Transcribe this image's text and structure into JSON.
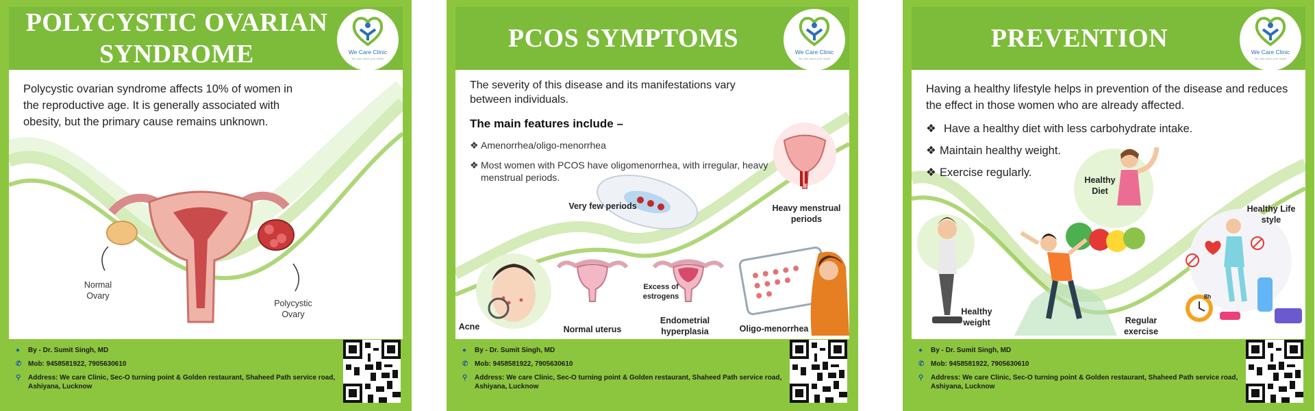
{
  "brand": {
    "name": "We Care Clinic",
    "tagline": "We care about your health",
    "green": "#8cc63f",
    "title_green": "#7dbb3a"
  },
  "footer": {
    "doctor": "By - Dr. Sumit Singh, MD",
    "phone": "Mob: 9458581922, 7905630610",
    "address_line1": "Address: We care Clinic, Sec-O turning point & Golden restaurant, Shaheed Path service road,",
    "address_line2": "Ashiyana, Lucknow",
    "icons": [
      "person-icon",
      "phone-icon",
      "location-pin-icon",
      "qr-code"
    ]
  },
  "panels": [
    {
      "title_line1": "POLYCYSTIC OVARIAN",
      "title_line2": "SYNDROME",
      "text": "Polycystic ovarian syndrome affects 10% of women in the reproductive age. It is generally associated with obesity, but the primary cause remains unknown.",
      "labels": {
        "normal_1": "Normal",
        "normal_2": "Ovary",
        "poly_1": "Polycystic",
        "poly_2": "Ovary"
      }
    },
    {
      "title": "PCOS SYMPTOMS",
      "text": "The severity of this disease and its manifestations vary between individuals.",
      "features_heading": "The main features include –",
      "bullets": [
        "Amenorrhea/oligo-menorrhea",
        "Most women with PCOS have oligomenorrhea, with irregular, heavy",
        "menstrual periods."
      ],
      "labels": {
        "very_few": "Very few periods",
        "heavy_1": "Heavy menstrual",
        "heavy_2": "periods",
        "excess_1": "Excess of",
        "excess_2": "estrogens",
        "acne": "Acne",
        "normal_uterus": "Normal uterus",
        "endo_1": "Endometrial",
        "endo_2": "hyperplasia",
        "oligo": "Oligo-menorrhea"
      }
    },
    {
      "title": "PREVENTION",
      "text": "Having a healthy lifestyle helps in prevention of the disease and reduces the effect in those women who are already affected.",
      "bullets": [
        "Have a healthy diet with less carbohydrate intake.",
        "Maintain healthy weight.",
        "Exercise regularly."
      ],
      "labels": {
        "diet_1": "Healthy",
        "diet_2": "Diet",
        "life_1": "Healthy Life",
        "life_2": "style",
        "weight_1": "Healthy",
        "weight_2": "weight",
        "exercise_1": "Regular",
        "exercise_2": "exercise",
        "clock": "8h"
      }
    }
  ]
}
